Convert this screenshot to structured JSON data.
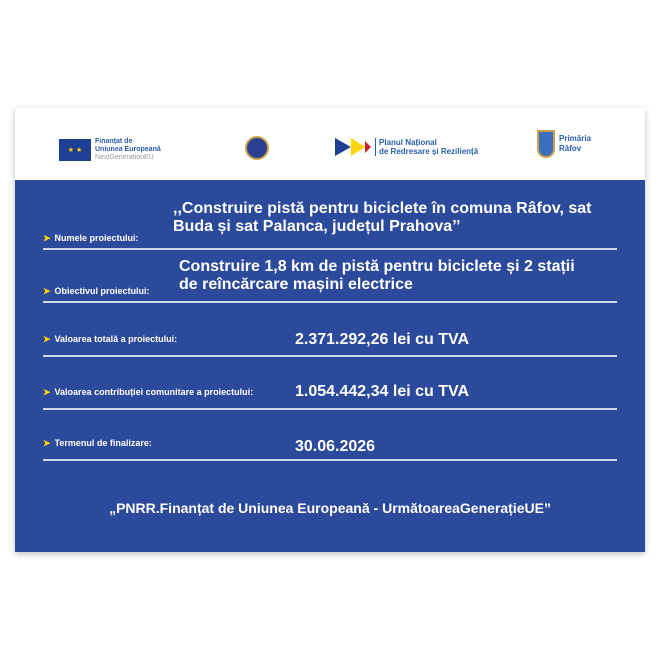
{
  "header": {
    "eu_logo": {
      "line1": "Finanțat de",
      "line2": "Uniunea Europeană",
      "line3": "NextGenerationEU"
    },
    "gov_logo": "romania-government-seal-icon",
    "pnrr_logo": {
      "line1": "Planul Național",
      "line2": "de Redresare și Reziliență"
    },
    "primaria_logo": {
      "line1": "Primăria",
      "line2": "Râfov"
    }
  },
  "rows": [
    {
      "label": "Numele proiectului:",
      "value_lines": [
        ",,Construire pistă pentru biciclete  în comuna Râfov, sat",
        "Buda și sat Palanca, județul Prahova’’"
      ]
    },
    {
      "label": "Obiectivul proiectului:",
      "value_lines": [
        "Construire 1,8 km de pistă pentru biciclete și  2  stații",
        "de reîncărcare mașini electrice"
      ]
    },
    {
      "label": "Valoarea totală a proiectului:",
      "value": "2.371.292,26 lei cu TVA"
    },
    {
      "label": "Valoarea contribuției comunitare a proiectului:",
      "value": "1.054.442,34 lei cu TVA"
    },
    {
      "label": "Termenul de finalizare:",
      "value": "30.06.2026"
    }
  ],
  "footer": "„PNRR.Finanțat de Uniunea Europeană - UrmătoareaGenerațieUE”",
  "colors": {
    "board": "#2c4a9c",
    "arrow": "#ffd400",
    "text": "#ffffff"
  }
}
